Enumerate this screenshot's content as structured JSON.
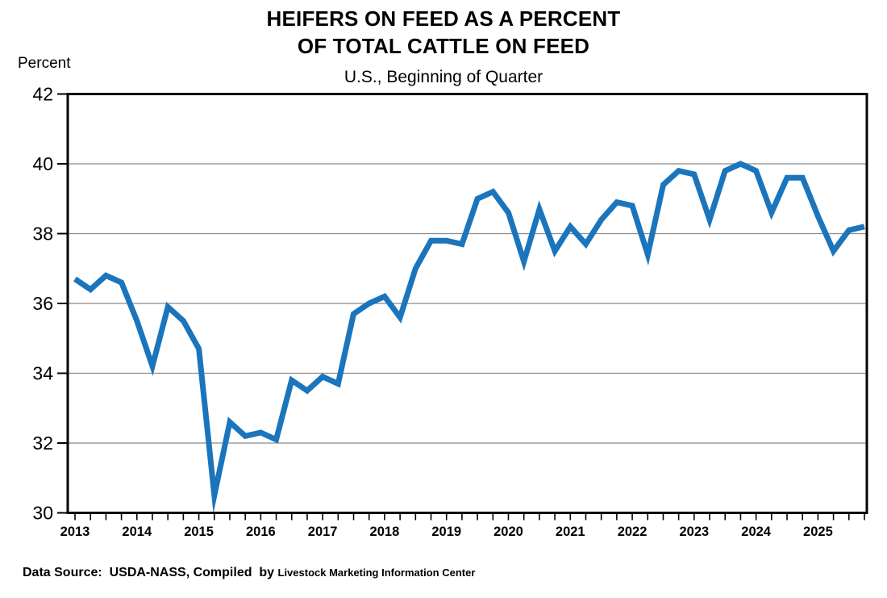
{
  "page": {
    "background": "#ffffff",
    "text_color": "#000000"
  },
  "header": {
    "title_line1": "HEIFERS ON FEED AS A PERCENT",
    "title_line2": "OF TOTAL CATTLE ON FEED",
    "subtitle": "U.S., Beginning of Quarter",
    "y_axis_unit_label": "Percent"
  },
  "footer": {
    "source_text": "Data Source:  USDA-NASS, Compiled  by ",
    "source_org": "Livestock Marketing Information Center"
  },
  "chart_data": {
    "type": "line",
    "title": "HEIFERS ON FEED AS A PERCENT OF TOTAL CATTLE ON FEED",
    "subtitle": "U.S., Beginning of Quarter",
    "xlabel": "",
    "ylabel": "Percent",
    "ylim": [
      30,
      42
    ],
    "y_ticks": [
      42,
      40,
      38,
      36,
      34,
      32,
      30
    ],
    "grid": "horizontal-only",
    "legend": "none",
    "frequency": "quarterly",
    "x_start": "2013 Q1",
    "x_end": "2025 Q4",
    "x_year_labels": [
      "2013",
      "2014",
      "2015",
      "2016",
      "2017",
      "2018",
      "2019",
      "2020",
      "2021",
      "2022",
      "2023",
      "2024",
      "2025"
    ],
    "series": [
      {
        "name": "Heifers on feed as percent of total cattle on feed",
        "color": "#1b75bc",
        "values": [
          36.7,
          36.4,
          36.8,
          36.6,
          35.5,
          34.2,
          35.9,
          35.5,
          34.7,
          30.5,
          32.6,
          32.2,
          32.3,
          32.1,
          33.8,
          33.5,
          33.9,
          33.7,
          35.7,
          36.0,
          36.2,
          35.6,
          37.0,
          37.8,
          37.8,
          37.7,
          39.0,
          39.2,
          38.6,
          37.2,
          38.7,
          37.5,
          38.2,
          37.7,
          38.4,
          38.9,
          38.8,
          37.4,
          39.4,
          39.8,
          39.7,
          38.4,
          39.8,
          40.0,
          39.8,
          38.6,
          39.6,
          39.6,
          38.5,
          37.5,
          38.1,
          38.2
        ]
      }
    ],
    "style": {
      "line_color": "#1b75bc",
      "line_width": 7,
      "gridline_color": "#8a8a8a",
      "frame_color": "#000000"
    }
  }
}
